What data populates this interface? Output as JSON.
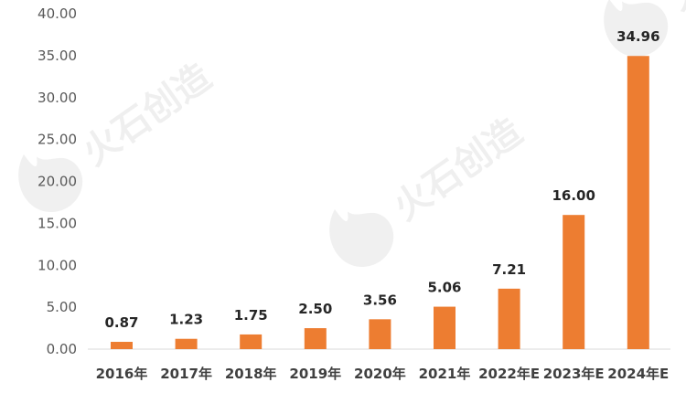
{
  "chart_data": {
    "type": "bar",
    "categories": [
      "2016年",
      "2017年",
      "2018年",
      "2019年",
      "2020年",
      "2021年",
      "2022年E",
      "2023年E",
      "2024年E"
    ],
    "values": [
      0.87,
      1.23,
      1.75,
      2.5,
      3.56,
      5.06,
      7.21,
      16.0,
      34.96
    ],
    "data_labels": [
      "0.87",
      "1.23",
      "1.75",
      "2.50",
      "3.56",
      "5.06",
      "7.21",
      "16.00",
      "34.96"
    ],
    "y_ticks": [
      "0.00",
      "5.00",
      "10.00",
      "15.00",
      "20.00",
      "25.00",
      "30.00",
      "35.00",
      "40.00"
    ],
    "ylim": [
      0,
      40
    ],
    "grid": false,
    "bar_color": "#ED7D31",
    "title": "",
    "xlabel": "",
    "ylabel": ""
  },
  "watermark": {
    "text": "火石创造",
    "color": "#000000"
  }
}
